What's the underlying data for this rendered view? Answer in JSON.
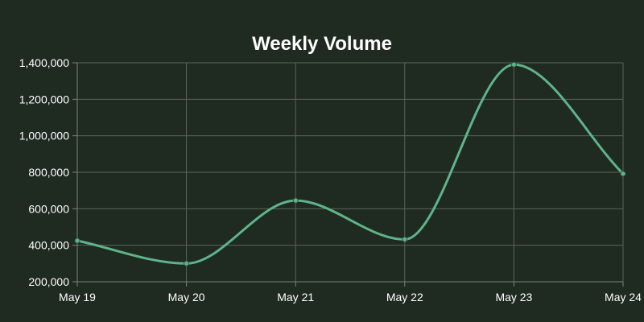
{
  "chart_data": {
    "type": "line",
    "title": "Weekly Volume",
    "categories": [
      "May 19",
      "May 20",
      "May 21",
      "May 22",
      "May 23",
      "May 24"
    ],
    "series": [
      {
        "values": [
          425000,
          300000,
          645000,
          432000,
          1390000,
          792000
        ],
        "color": "#5fb38a"
      }
    ],
    "ylim": [
      200000,
      1400000
    ],
    "yticks": [
      200000,
      400000,
      600000,
      800000,
      1000000,
      1200000,
      1400000
    ],
    "ytick_labels": [
      "200,000",
      "400,000",
      "600,000",
      "800,000",
      "1,000,000",
      "1,200,000",
      "1,400,000"
    ],
    "grid": true,
    "legend": "none"
  },
  "colors": {
    "background": "#1f2a21",
    "line": "#5fb38a",
    "grid": "#5a6459",
    "text": "#ffffff"
  }
}
